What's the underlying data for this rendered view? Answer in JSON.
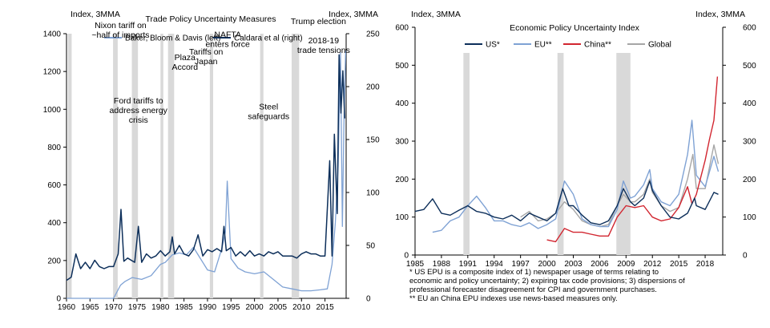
{
  "chart_data": [
    {
      "type": "line",
      "title": "Trade  Policy Uncertainty Measures",
      "left_axis_label": "Index, 3MMA",
      "right_axis_label": "Index, 3MMA",
      "xlim": [
        1960,
        2019.5
      ],
      "ylim_left": [
        0,
        1400
      ],
      "ylim_right": [
        0,
        250
      ],
      "x_ticks": [
        "1960",
        "1965",
        "1970",
        "1975",
        "1980",
        "1985",
        "1990",
        "1995",
        "2000",
        "2005",
        "2010",
        "2015"
      ],
      "y_ticks_left": [
        "0",
        "200",
        "400",
        "600",
        "800",
        "1000",
        "1200",
        "1400"
      ],
      "y_ticks_right": [
        "0",
        "50",
        "100",
        "150",
        "200",
        "250"
      ],
      "legend_position": "top",
      "shaded_periods": [
        [
          1960.3,
          1961.1
        ],
        [
          1969.9,
          1970.9
        ],
        [
          1973.9,
          1975.2
        ],
        [
          1980.0,
          1980.6
        ],
        [
          1981.6,
          1982.9
        ],
        [
          1990.5,
          1991.2
        ],
        [
          2001.2,
          2001.9
        ],
        [
          2007.9,
          2009.5
        ]
      ],
      "series": [
        {
          "name": "Baker, Bloom & Davis (left)",
          "axis": "left",
          "color": "#7fa2d4",
          "x": [
            1960,
            1962,
            1964,
            1966,
            1968,
            1970,
            1971.5,
            1972.5,
            1974,
            1976,
            1978,
            1980,
            1981,
            1982.5,
            1984,
            1985.5,
            1987,
            1988.5,
            1990,
            1991.5,
            1993,
            1993.8,
            1994.2,
            1995,
            1996.5,
            1998,
            2000,
            2002,
            2004,
            2006,
            2008,
            2010,
            2012,
            2014,
            2015.5,
            2016.5,
            2017.2,
            2017.8,
            2018.3,
            2018.7,
            2019,
            2019.4
          ],
          "values": [
            0,
            0,
            0,
            0,
            0,
            0,
            70,
            90,
            110,
            100,
            120,
            180,
            190,
            230,
            240,
            230,
            270,
            210,
            150,
            140,
            260,
            350,
            620,
            210,
            160,
            140,
            130,
            140,
            100,
            60,
            50,
            40,
            40,
            45,
            50,
            180,
            400,
            700,
            1300,
            380,
            900,
            1310
          ]
        },
        {
          "name": "Caldara et al (right)",
          "axis": "right",
          "color": "#0d2f5a",
          "x": [
            1960,
            1961,
            1962,
            1963,
            1964,
            1965,
            1966,
            1967,
            1968,
            1969,
            1970,
            1971,
            1971.6,
            1972.2,
            1973,
            1974.5,
            1975.3,
            1976,
            1977,
            1978,
            1979,
            1980,
            1981,
            1982,
            1982.5,
            1983,
            1984,
            1985,
            1986,
            1987,
            1988,
            1989,
            1990,
            1991,
            1992,
            1993,
            1993.5,
            1994,
            1995,
            1996,
            1997,
            1998,
            1999,
            2000,
            2001,
            2002,
            2003,
            2004,
            2005,
            2006,
            2007,
            2008,
            2009,
            2010,
            2011,
            2012,
            2013,
            2014,
            2015,
            2016,
            2016.5,
            2017,
            2017.6,
            2018,
            2018.4,
            2018.8,
            2019.2
          ],
          "values": [
            17,
            20,
            42,
            28,
            34,
            28,
            36,
            30,
            28,
            30,
            30,
            42,
            84,
            35,
            38,
            34,
            68,
            34,
            42,
            38,
            40,
            45,
            40,
            44,
            58,
            42,
            50,
            42,
            40,
            46,
            60,
            40,
            46,
            44,
            47,
            44,
            68,
            45,
            48,
            40,
            44,
            40,
            45,
            40,
            42,
            40,
            44,
            42,
            44,
            40,
            40,
            40,
            38,
            42,
            44,
            42,
            42,
            40,
            40,
            130,
            40,
            155,
            80,
            230,
            175,
            215,
            170
          ]
        }
      ],
      "annotations": [
        {
          "text": "Nixon tariff on\n~half of imports",
          "x": 1971.5,
          "y_left": 1430
        },
        {
          "text": "Ford tariffs to\naddress energy\ncrisis",
          "x": 1975.3,
          "y_left": 1030
        },
        {
          "text": "Plaza\nAccord",
          "x": 1985.2,
          "y_left": 1260
        },
        {
          "text": "Tariffs on\nJapan",
          "x": 1989.7,
          "y_left": 1290
        },
        {
          "text": "NAFTA\nenters force",
          "x": 1994.3,
          "y_left": 1380
        },
        {
          "text": "Steel\nsafeguards",
          "x": 2003.0,
          "y_left": 1000
        },
        {
          "text": "Trump election",
          "x": 2013.6,
          "y_left": 1450
        },
        {
          "text": "2018-19\ntrade tensions",
          "x": 2014.7,
          "y_left": 1350
        }
      ]
    },
    {
      "type": "line",
      "title": "Economic Policy Uncertainty Index",
      "left_axis_label": "Index, 3MMA",
      "right_axis_label": "Index, 3MMA",
      "xlim": [
        1985,
        2020
      ],
      "ylim": [
        0,
        600
      ],
      "x_ticks": [
        "1985",
        "1988",
        "1991",
        "1994",
        "1997",
        "2000",
        "2003",
        "2006",
        "2009",
        "2012",
        "2015",
        "2018"
      ],
      "y_ticks": [
        "0",
        "100",
        "200",
        "300",
        "400",
        "500",
        "600"
      ],
      "legend_position": "top",
      "shaded_periods": [
        [
          1990.5,
          1991.2
        ],
        [
          2001.2,
          2001.9
        ],
        [
          2007.9,
          2009.5
        ]
      ],
      "series": [
        {
          "name": "US*",
          "color": "#0d2f5a",
          "x": [
            1985,
            1986,
            1987,
            1988,
            1989,
            1990,
            1991,
            1992,
            1993,
            1994,
            1995,
            1996,
            1997,
            1998,
            1999,
            2000,
            2001,
            2001.8,
            2002.5,
            2003,
            2004,
            2005,
            2006,
            2007,
            2008,
            2008.7,
            2009.5,
            2010,
            2011,
            2011.7,
            2012,
            2013,
            2014,
            2015,
            2016,
            2016.8,
            2017,
            2018,
            2019,
            2019.5
          ],
          "values": [
            115,
            120,
            148,
            110,
            105,
            118,
            130,
            115,
            110,
            100,
            95,
            105,
            90,
            110,
            100,
            90,
            110,
            175,
            130,
            130,
            105,
            85,
            80,
            90,
            130,
            175,
            140,
            130,
            150,
            195,
            170,
            130,
            100,
            95,
            110,
            150,
            130,
            120,
            165,
            160
          ]
        },
        {
          "name": "EU**",
          "color": "#7fa2d4",
          "x": [
            1987,
            1988,
            1989,
            1990,
            1991,
            1992,
            1993,
            1994,
            1995,
            1996,
            1997,
            1998,
            1999,
            2000,
            2001,
            2002,
            2003,
            2004,
            2005,
            2006,
            2007,
            2008,
            2008.7,
            2009.5,
            2010,
            2011,
            2011.7,
            2012,
            2013,
            2014,
            2015,
            2016,
            2016.5,
            2017,
            2018,
            2019,
            2019.5
          ],
          "values": [
            60,
            65,
            90,
            100,
            130,
            155,
            125,
            90,
            90,
            80,
            75,
            85,
            70,
            80,
            95,
            195,
            160,
            95,
            80,
            75,
            75,
            120,
            195,
            150,
            155,
            185,
            225,
            175,
            140,
            130,
            160,
            265,
            355,
            210,
            180,
            260,
            220
          ]
        },
        {
          "name": "China**",
          "color": "#d22630",
          "x": [
            2000,
            2001,
            2002,
            2003,
            2004,
            2005,
            2006,
            2007,
            2008,
            2009,
            2010,
            2011,
            2012,
            2013,
            2014,
            2015,
            2016,
            2016.5,
            2017,
            2018,
            2018.5,
            2019,
            2019.4
          ],
          "values": [
            40,
            35,
            70,
            60,
            60,
            55,
            50,
            50,
            100,
            130,
            125,
            130,
            100,
            90,
            95,
            125,
            180,
            135,
            160,
            250,
            305,
            355,
            470
          ]
        },
        {
          "name": "Global",
          "color": "#a6a6a6",
          "x": [
            1997,
            1998,
            1999,
            2000,
            2001,
            2002,
            2003,
            2004,
            2005,
            2006,
            2007,
            2008,
            2008.7,
            2009.5,
            2010,
            2011,
            2011.7,
            2012,
            2013,
            2014,
            2015,
            2016,
            2016.6,
            2017,
            2018,
            2019,
            2019.5
          ],
          "values": [
            100,
            115,
            90,
            95,
            110,
            140,
            120,
            90,
            80,
            75,
            80,
            130,
            160,
            140,
            140,
            160,
            200,
            165,
            130,
            115,
            125,
            200,
            265,
            175,
            175,
            290,
            240
          ]
        }
      ],
      "footnotes": [
        "* US EPU is a composite index of 1) newspaper usage of terms relating to",
        "economic and policy uncertainty; 2) expiring tax code provisions; 3) dispersions of",
        "professional forecaster disagreement for CPI and government purchases.",
        "** EU an China EPU indexes use news-based measures only."
      ]
    }
  ]
}
